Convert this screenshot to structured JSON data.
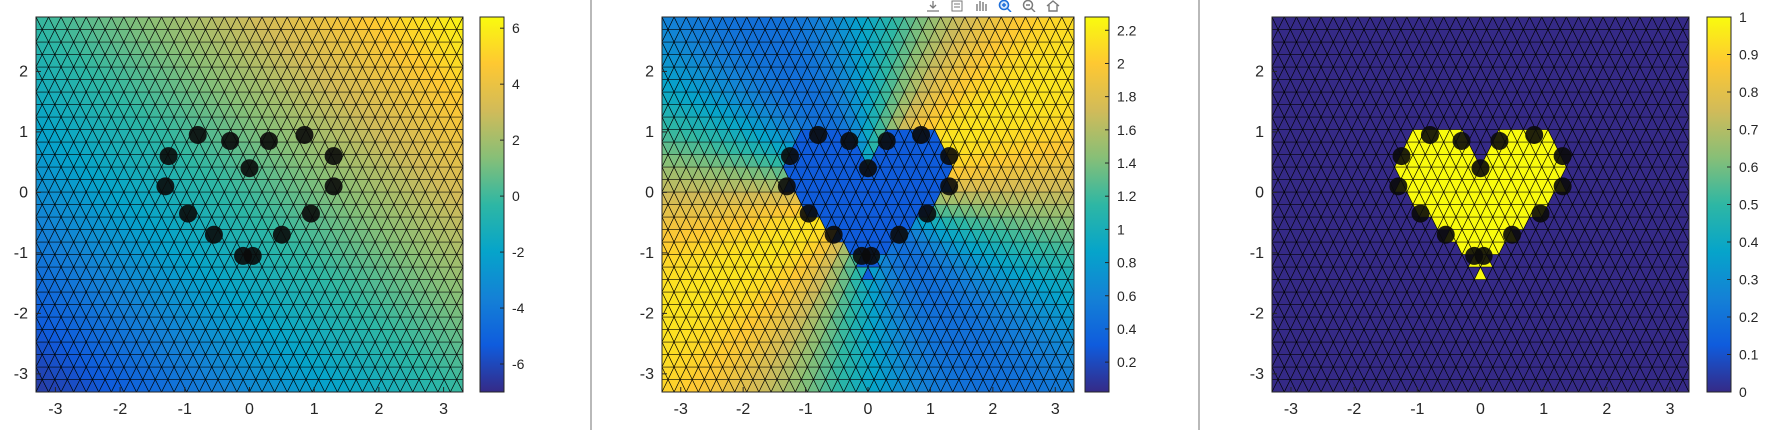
{
  "toolbar": {
    "icons": [
      "export-icon",
      "brush-icon",
      "pan-hand-icon",
      "zoom-in-icon",
      "zoom-out-icon",
      "home-icon"
    ],
    "active_icon": "zoom-in-icon"
  },
  "colors": {
    "parula": [
      "#352a87",
      "#0f5cdd",
      "#1481d6",
      "#06a4ca",
      "#2eb7a4",
      "#87bf77",
      "#d1bb59",
      "#fec832",
      "#f9fb0e"
    ],
    "mesh_line": "#000000",
    "divider": "#b9b9b9"
  },
  "chart_data": [
    {
      "type": "heatmap",
      "title": "",
      "xlabel": "",
      "ylabel": "",
      "field": "linear-gradient",
      "xlim": [
        -3.3,
        3.3
      ],
      "ylim": [
        -3.3,
        2.9
      ],
      "xticks": [
        -3,
        -2,
        -1,
        0,
        1,
        2,
        3
      ],
      "xtick_labels": [
        "-3",
        "-2",
        "-1",
        "0",
        "1",
        "2",
        "3"
      ],
      "yticks": [
        2,
        1,
        0,
        -1,
        -2,
        -3
      ],
      "ytick_labels": [
        "2",
        "1",
        "0",
        "-1",
        "-2",
        "-3"
      ],
      "colorbar": {
        "range": [
          -7,
          6.4
        ],
        "ticks": [
          6,
          4,
          2,
          0,
          -2,
          -4,
          -6
        ],
        "tick_labels": [
          "6",
          "4",
          "2",
          "0",
          "-2",
          "-4",
          "-6"
        ]
      },
      "value_at_corners": {
        "bottom_left": -6.5,
        "top_right": 6.2
      }
    },
    {
      "type": "heatmap",
      "title": "",
      "xlabel": "",
      "ylabel": "",
      "field": "angular",
      "xlim": [
        -3.3,
        3.3
      ],
      "ylim": [
        -3.3,
        2.9
      ],
      "xticks": [
        -3,
        -2,
        -1,
        0,
        1,
        2,
        3
      ],
      "xtick_labels": [
        "-3",
        "-2",
        "-1",
        "0",
        "1",
        "2",
        "3"
      ],
      "yticks": [
        2,
        1,
        0,
        -1,
        -2,
        -3
      ],
      "ytick_labels": [
        "2",
        "1",
        "0",
        "-1",
        "-2",
        "-3"
      ],
      "colorbar": {
        "range": [
          0.02,
          2.28
        ],
        "ticks": [
          2.2,
          2,
          1.8,
          1.6,
          1.4,
          1.2,
          1,
          0.8,
          0.6,
          0.4,
          0.2
        ],
        "tick_labels": [
          "2.2",
          "2",
          "1.8",
          "1.6",
          "1.4",
          "1.2",
          "1",
          "0.8",
          "0.6",
          "0.4",
          "0.2"
        ]
      },
      "inside_value": 0.3,
      "max_value": 2.2
    },
    {
      "type": "heatmap",
      "title": "",
      "xlabel": "",
      "ylabel": "",
      "field": "indicator",
      "xlim": [
        -3.3,
        3.3
      ],
      "ylim": [
        -3.3,
        2.9
      ],
      "xticks": [
        -3,
        -2,
        -1,
        0,
        1,
        2,
        3
      ],
      "xtick_labels": [
        "-3",
        "-2",
        "-1",
        "0",
        "1",
        "2",
        "3"
      ],
      "yticks": [
        2,
        1,
        0,
        -1,
        -2,
        -3
      ],
      "ytick_labels": [
        "2",
        "1",
        "0",
        "-1",
        "-2",
        "-3"
      ],
      "colorbar": {
        "range": [
          0,
          1
        ],
        "ticks": [
          1,
          0.9,
          0.8,
          0.7,
          0.6,
          0.5,
          0.4,
          0.3,
          0.2,
          0.1,
          0
        ],
        "tick_labels": [
          "1",
          "0.9",
          "0.8",
          "0.7",
          "0.6",
          "0.5",
          "0.4",
          "0.3",
          "0.2",
          "0.1",
          "0"
        ]
      },
      "inside_value": 1,
      "outside_value": 0
    }
  ],
  "heart_nodes": [
    [
      -1.25,
      0.6
    ],
    [
      -0.8,
      0.95
    ],
    [
      -0.3,
      0.85
    ],
    [
      0.3,
      0.85
    ],
    [
      0.85,
      0.95
    ],
    [
      1.3,
      0.6
    ],
    [
      1.3,
      0.1
    ],
    [
      0.95,
      -0.35
    ],
    [
      0.5,
      -0.7
    ],
    [
      0.05,
      -1.05
    ],
    [
      -0.1,
      -1.05
    ],
    [
      -0.55,
      -0.7
    ],
    [
      -0.95,
      -0.35
    ],
    [
      -1.3,
      0.1
    ],
    [
      0.0,
      0.4
    ]
  ]
}
